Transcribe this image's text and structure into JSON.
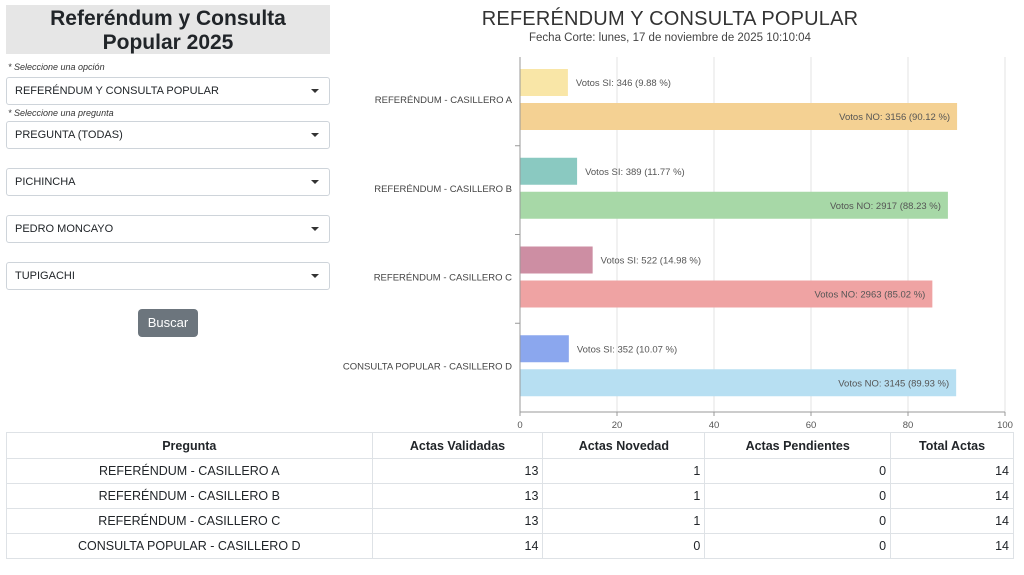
{
  "sidebar": {
    "title": "Referéndum y Consulta Popular 2025",
    "option_hint": "* Seleccione una opción",
    "option_value": "REFERÉNDUM Y CONSULTA POPULAR",
    "question_hint": "* Seleccione una pregunta",
    "question_value": "PREGUNTA (TODAS)",
    "province_value": "PICHINCHA",
    "canton_value": "PEDRO MONCAYO",
    "parish_value": "TUPIGACHI",
    "search_label": "Buscar"
  },
  "chart_header": {
    "title": "REFERÉNDUM Y CONSULTA POPULAR",
    "subtitle": "Fecha Corte: lunes, 17 de noviembre de 2025 10:10:04"
  },
  "chart_data": {
    "type": "bar",
    "orientation": "horizontal",
    "categories": [
      "REFERÉNDUM - CASILLERO A",
      "REFERÉNDUM - CASILLERO B",
      "REFERÉNDUM - CASILLERO C",
      "CONSULTA POPULAR - CASILLERO D"
    ],
    "series": [
      {
        "key": "si",
        "values": [
          9.88,
          11.77,
          14.98,
          10.07
        ],
        "labels": [
          "Votos SI: 346 (9.88 %)",
          "Votos SI: 389 (11.77 %)",
          "Votos SI: 522 (14.98 %)",
          "Votos SI: 352 (10.07 %)"
        ],
        "colors": [
          "#f9e6a7",
          "#8ac9c1",
          "#cd8ea3",
          "#8ba7ee"
        ]
      },
      {
        "key": "no",
        "values": [
          90.12,
          88.23,
          85.02,
          89.93
        ],
        "labels": [
          "Votos NO: 3156 (90.12 %)",
          "Votos NO: 2917 (88.23 %)",
          "Votos NO: 2963 (85.02 %)",
          "Votos NO: 3145 (89.93 %)"
        ],
        "colors": [
          "#f4d193",
          "#a7d8a7",
          "#efa3a3",
          "#b7dff2"
        ]
      }
    ],
    "xlim": [
      0,
      100
    ],
    "xticks": [
      "0",
      "20",
      "40",
      "60",
      "80",
      "100"
    ],
    "grid": true
  },
  "table": {
    "headers": [
      "Pregunta",
      "Actas Validadas",
      "Actas Novedad",
      "Actas Pendientes",
      "Total Actas"
    ],
    "rows": [
      [
        "REFERÉNDUM - CASILLERO A",
        "13",
        "1",
        "0",
        "14"
      ],
      [
        "REFERÉNDUM - CASILLERO B",
        "13",
        "1",
        "0",
        "14"
      ],
      [
        "REFERÉNDUM - CASILLERO C",
        "13",
        "1",
        "0",
        "14"
      ],
      [
        "CONSULTA POPULAR - CASILLERO D",
        "14",
        "0",
        "0",
        "14"
      ]
    ]
  }
}
